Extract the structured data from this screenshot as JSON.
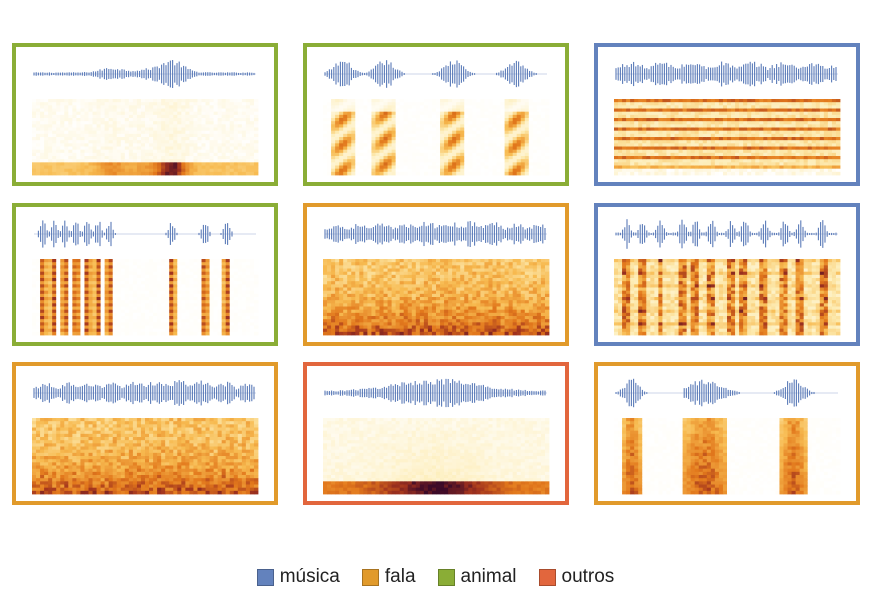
{
  "colors": {
    "musica": "#6382bd",
    "fala": "#e19a2b",
    "animal": "#8aad36",
    "outros": "#e2663d",
    "waveform": "#5b7bb8"
  },
  "legend": [
    {
      "key": "musica",
      "label": "música"
    },
    {
      "key": "fala",
      "label": "fala"
    },
    {
      "key": "animal",
      "label": "animal"
    },
    {
      "key": "outros",
      "label": "outros"
    }
  ],
  "panels": [
    {
      "category": "animal",
      "pattern": "lowband-sparse"
    },
    {
      "category": "animal",
      "pattern": "chirps"
    },
    {
      "category": "musica",
      "pattern": "harmonic-lines"
    },
    {
      "category": "animal",
      "pattern": "pulses"
    },
    {
      "category": "fala",
      "pattern": "dense-noise"
    },
    {
      "category": "musica",
      "pattern": "beats"
    },
    {
      "category": "fala",
      "pattern": "dense-noise"
    },
    {
      "category": "outros",
      "pattern": "lowband-smooth"
    },
    {
      "category": "fala",
      "pattern": "speech-bursts"
    }
  ]
}
